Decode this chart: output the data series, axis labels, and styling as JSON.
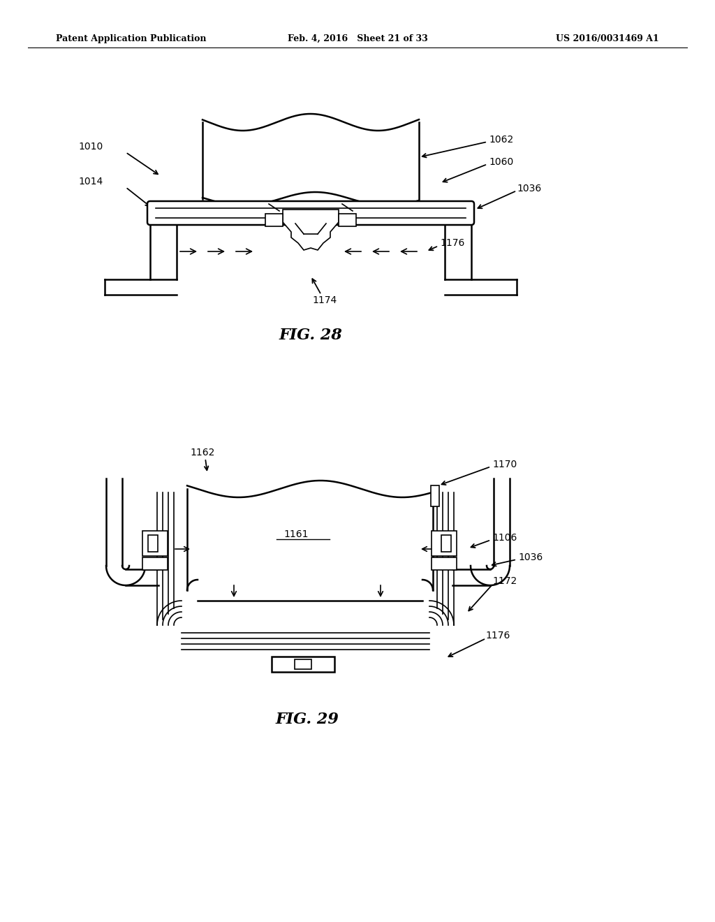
{
  "background_color": "#ffffff",
  "header_left": "Patent Application Publication",
  "header_mid": "Feb. 4, 2016   Sheet 21 of 33",
  "header_right": "US 2016/0031469 A1",
  "fig28_label": "FIG. 28",
  "fig29_label": "FIG. 29"
}
